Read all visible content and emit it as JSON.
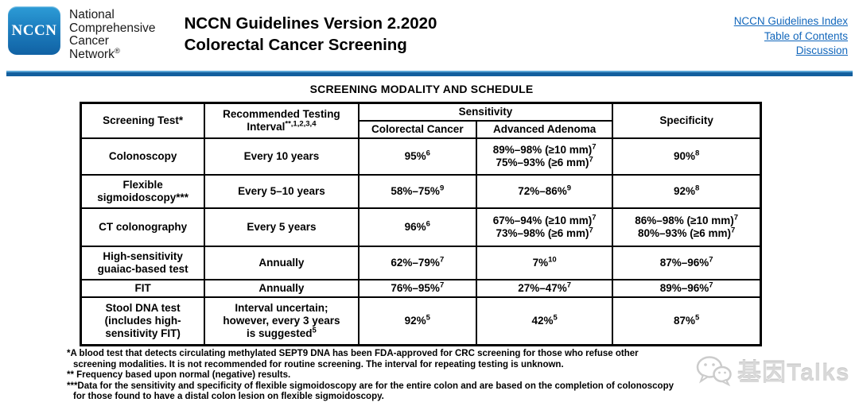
{
  "header": {
    "logo_text": "NCCN",
    "org_lines": [
      "National",
      "Comprehensive",
      "Cancer",
      "Network^{®}"
    ],
    "title_line1": "NCCN Guidelines Version 2.2020",
    "title_line2": "Colorectal Cancer Screening",
    "links": {
      "guidelines_index": "NCCN Guidelines Index",
      "table_of_contents": "Table of Contents",
      "discussion": "Discussion"
    }
  },
  "section_title": "SCREENING MODALITY AND SCHEDULE",
  "table": {
    "header": {
      "screening_test": "Screening Test*",
      "interval": "Recommended Testing\nInterval^{**,1,2,3,4}",
      "sensitivity": "Sensitivity",
      "colorectal_cancer": "Colorectal Cancer",
      "advanced_adenoma": "Advanced Adenoma",
      "specificity": "Specificity"
    },
    "rows": [
      {
        "test": "Colonoscopy",
        "interval": "Every 10 years",
        "sens_crc": "95%^{6}",
        "sens_adenoma": "89%–98% (≥10 mm)^{7}\n75%–93% (≥6 mm)^{7}",
        "specificity": "90%^{8}"
      },
      {
        "test": "Flexible\nsigmoidoscopy***",
        "interval": "Every 5–10 years",
        "sens_crc": "58%–75%^{9}",
        "sens_adenoma": "72%–86%^{9}",
        "specificity": "92%^{8}"
      },
      {
        "test": "CT colonography",
        "interval": "Every 5 years",
        "sens_crc": "96%^{6}",
        "sens_adenoma": "67%–94% (≥10 mm)^{7}\n73%–98% (≥6 mm)^{7}",
        "specificity": "86%–98% (≥10 mm)^{7}\n80%–93% (≥6 mm)^{7}"
      },
      {
        "test": "High-sensitivity\nguaiac-based test",
        "interval": "Annually",
        "sens_crc": "62%–79%^{7}",
        "sens_adenoma": "7%^{10}",
        "specificity": "87%–96%^{7}"
      },
      {
        "test": "FIT",
        "interval": "Annually",
        "sens_crc": "76%–95%^{7}",
        "sens_adenoma": "27%–47%^{7}",
        "specificity": "89%–96%^{7}"
      },
      {
        "test": "Stool DNA test\n(includes high-\nsensitivity FIT)",
        "interval": "Interval uncertain;\nhowever, every 3 years\nis suggested^{5}",
        "sens_crc": "92%^{5}",
        "sens_adenoma": "42%^{5}",
        "specificity": "87%^{5}"
      }
    ]
  },
  "footnotes": [
    "*A blood test that detects circulating methylated SEPT9 DNA has been FDA-approved for CRC screening for those who refuse other\nscreening modalities. It is not recommended for routine screening. The interval for repeating testing is unknown.",
    "** Frequency based upon normal (negative) results.",
    "***Data for the sensitivity and specificity of flexible sigmoidoscopy are for the entire colon and are based on the completion of colonoscopy\nfor those found to have a distal colon lesion on flexible sigmoidoscopy."
  ],
  "watermark": {
    "text": "基因Talks"
  },
  "colors": {
    "accent_bar": "#135f9e",
    "logo_top": "#2d9cd6",
    "logo_bottom": "#1162a4",
    "link": "#1166bb",
    "watermark": "#d8d8d8"
  }
}
